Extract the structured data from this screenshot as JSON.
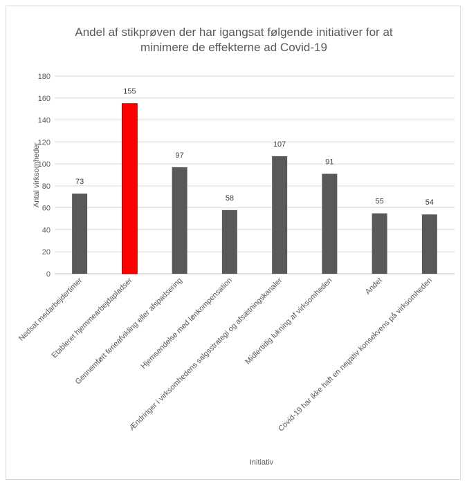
{
  "chart_data": {
    "type": "bar",
    "title": "Andel af stikprøven der har igangsat følgende initiativer for at minimere de effekterne ad Covid-19",
    "title_lines": [
      "Andel af stikprøven der har igangsat følgende initiativer for at",
      "minimere de effekterne ad Covid-19"
    ],
    "xlabel": "Initiativ",
    "ylabel": "Antal virksomheder",
    "ylim": [
      0,
      180
    ],
    "yticks": [
      0,
      20,
      40,
      60,
      80,
      100,
      120,
      140,
      160,
      180
    ],
    "grid": true,
    "categories": [
      "Nedsat medarbejdertimer",
      "Etableret hjemmearbejdapladser",
      "Gennemført ferieafvikling eller afspadsering",
      "Hjemsendelse med lønkompensation",
      "Ændringer i virksomhedens salgsstrategi og afsætningskanaler",
      "Midlertidig lukning af virksomheden",
      "Andet",
      "Covid-19 har ikke haft en negativ konsekvens på virksomheden"
    ],
    "values": [
      73,
      155,
      97,
      58,
      107,
      91,
      55,
      54
    ],
    "colors": {
      "default_bar": "#595959",
      "highlight_bar": "#ff0000",
      "highlight_index": 1,
      "grid": "#d9d9d9",
      "text": "#595959"
    }
  }
}
